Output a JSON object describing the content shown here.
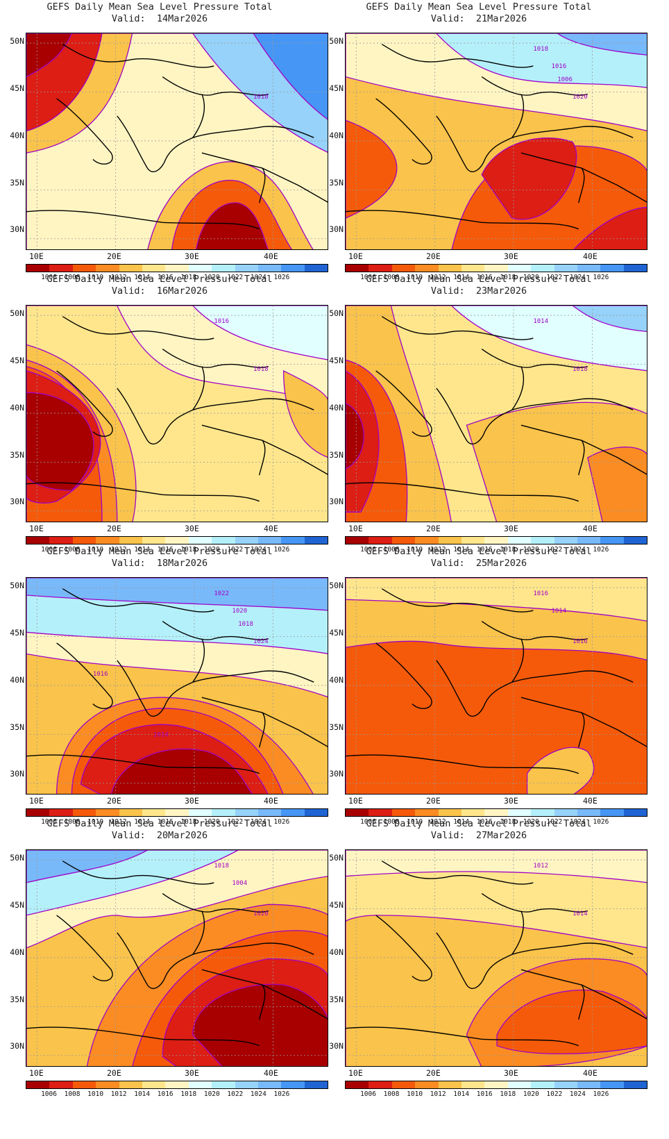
{
  "panel_title": "GEFS Daily Mean Sea Level Pressure Total",
  "valid_prefix": "Valid:",
  "panels": [
    {
      "date": "14Mar2026",
      "regime": "north_high_se_low",
      "labels": [
        "1018"
      ]
    },
    {
      "date": "21Mar2026",
      "regime": "north_high_east_low",
      "labels": [
        "1020",
        "1018",
        "1016",
        "1006"
      ]
    },
    {
      "date": "16Mar2026",
      "regime": "west_low",
      "labels": [
        "1018",
        "1016"
      ]
    },
    {
      "date": "23Mar2026",
      "regime": "west_low_weak",
      "labels": [
        "1018",
        "1014"
      ]
    },
    {
      "date": "18Mar2026",
      "regime": "north_high_south_low",
      "labels": [
        "1024",
        "1022",
        "1020",
        "1018",
        "1016",
        "1014"
      ]
    },
    {
      "date": "25Mar2026",
      "regime": "flat_low",
      "labels": [
        "1016",
        "1016",
        "1014"
      ]
    },
    {
      "date": "20Mar2026",
      "regime": "nw_high_east_low",
      "labels": [
        "1020",
        "1018",
        "1004"
      ]
    },
    {
      "date": "27Mar2026",
      "regime": "flat_weak",
      "labels": [
        "1014",
        "1012"
      ]
    }
  ],
  "lat_labels": [
    "50N",
    "45N",
    "40N",
    "35N",
    "30N"
  ],
  "lon_labels": [
    "10E",
    "20E",
    "30E",
    "40E"
  ],
  "colorbar": {
    "colors": [
      "#a80000",
      "#dc1e14",
      "#f55a0a",
      "#fa8c23",
      "#fac34b",
      "#ffe68c",
      "#fff5c3",
      "#e1ffff",
      "#b4f0fa",
      "#96d2fa",
      "#78b9fa",
      "#4696f5",
      "#1f64d2"
    ],
    "labels": [
      "1006",
      "1008",
      "1010",
      "1012",
      "1014",
      "1016",
      "1018",
      "1020",
      "1022",
      "1024",
      "1026"
    ]
  },
  "isobar_color": "#a000c8"
}
